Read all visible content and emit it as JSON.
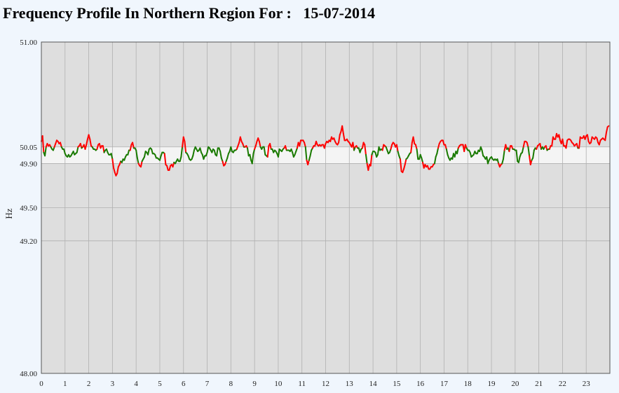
{
  "title": "Frequency Profile In Northern Region For :   15-07-2014",
  "colors": {
    "page_background": "#f0f6fd",
    "plot_background": "#dedede",
    "band_fill": "#f4f4f4",
    "grid": "#b0b0b0",
    "above_band": "#ff0000",
    "within_band": "#1a7a00"
  },
  "chart_data": {
    "type": "line",
    "title": "Frequency Profile In Northern Region For :   15-07-2014",
    "xlabel": "",
    "ylabel": "Hz",
    "xlim": [
      0,
      24
    ],
    "ylim": [
      48.0,
      51.0
    ],
    "x_ticks": [
      0,
      1,
      2,
      3,
      4,
      5,
      6,
      7,
      8,
      9,
      10,
      11,
      12,
      13,
      14,
      15,
      16,
      17,
      18,
      19,
      20,
      21,
      22,
      23
    ],
    "y_ticks": [
      {
        "value": 51.0,
        "label": "51.00"
      },
      {
        "value": 50.05,
        "label": "50.05"
      },
      {
        "value": 49.9,
        "label": "49.90"
      },
      {
        "value": 49.5,
        "label": "49.50"
      },
      {
        "value": 49.2,
        "label": "49.20"
      },
      {
        "value": 48.0,
        "label": "48.00"
      }
    ],
    "band": {
      "low": 49.9,
      "high": 50.05
    },
    "grid": true,
    "legend": "none",
    "series": [
      {
        "color_rule": "red outside 49.90-50.05 band, green inside band",
        "x": [
          0,
          0.05,
          0.1,
          0.15,
          0.2,
          0.25,
          0.3,
          0.35,
          0.4,
          0.45,
          0.5,
          0.55,
          0.6,
          0.65,
          0.7,
          0.75,
          0.8,
          0.85,
          0.9,
          0.95,
          1,
          1.05,
          1.1,
          1.15,
          1.2,
          1.25,
          1.3,
          1.35,
          1.4,
          1.45,
          1.5,
          1.55,
          1.6,
          1.65,
          1.7,
          1.75,
          1.8,
          1.85,
          1.9,
          1.95,
          2,
          2.05,
          2.1,
          2.15,
          2.2,
          2.25,
          2.3,
          2.35,
          2.4,
          2.45,
          2.5,
          2.55,
          2.6,
          2.65,
          2.7,
          2.75,
          2.8,
          2.85,
          2.9,
          2.95,
          3,
          3.05,
          3.1,
          3.15,
          3.2,
          3.25,
          3.3,
          3.35,
          3.4,
          3.45,
          3.5,
          3.55,
          3.6,
          3.65,
          3.7,
          3.75,
          3.8,
          3.85,
          3.9,
          3.95,
          4,
          4.05,
          4.1,
          4.15,
          4.2,
          4.25,
          4.3,
          4.35,
          4.4,
          4.45,
          4.5,
          4.55,
          4.6,
          4.65,
          4.7,
          4.75,
          4.8,
          4.85,
          4.9,
          4.95,
          5,
          5.05,
          5.1,
          5.15,
          5.2,
          5.25,
          5.3,
          5.35,
          5.4,
          5.45,
          5.5,
          5.55,
          5.6,
          5.65,
          5.7,
          5.75,
          5.8,
          5.85,
          5.9,
          5.95,
          6,
          6.05,
          6.1,
          6.15,
          6.2,
          6.25,
          6.3,
          6.35,
          6.4,
          6.45,
          6.5,
          6.55,
          6.6,
          6.65,
          6.7,
          6.75,
          6.8,
          6.85,
          6.9,
          6.95,
          7,
          7.05,
          7.1,
          7.15,
          7.2,
          7.25,
          7.3,
          7.35,
          7.4,
          7.45,
          7.5,
          7.55,
          7.6,
          7.65,
          7.7,
          7.75,
          7.8,
          7.85,
          7.9,
          7.95,
          8,
          8.05,
          8.1,
          8.15,
          8.2,
          8.25,
          8.3,
          8.35,
          8.4,
          8.45,
          8.5,
          8.55,
          8.6,
          8.65,
          8.7,
          8.75,
          8.8,
          8.85,
          8.9,
          8.95,
          9,
          9.05,
          9.1,
          9.15,
          9.2,
          9.25,
          9.3,
          9.35,
          9.4,
          9.45,
          9.5,
          9.55,
          9.6,
          9.65,
          9.7,
          9.75,
          9.8,
          9.85,
          9.9,
          9.95,
          10,
          10.05,
          10.1,
          10.15,
          10.2,
          10.25,
          10.3,
          10.35,
          10.4,
          10.45,
          10.5,
          10.55,
          10.6,
          10.65,
          10.7,
          10.75,
          10.8,
          10.85,
          10.9,
          10.95,
          11,
          11.05,
          11.1,
          11.15,
          11.2,
          11.25,
          11.3,
          11.35,
          11.4,
          11.45,
          11.5,
          11.55,
          11.6,
          11.65,
          11.7,
          11.75,
          11.8,
          11.85,
          11.9,
          11.95,
          12,
          12.05,
          12.1,
          12.15,
          12.2,
          12.25,
          12.3,
          12.35,
          12.4,
          12.45,
          12.5,
          12.55,
          12.6,
          12.65,
          12.7,
          12.75,
          12.8,
          12.85,
          12.9,
          12.95,
          13,
          13.05,
          13.1,
          13.15,
          13.2,
          13.25,
          13.3,
          13.35,
          13.4,
          13.45,
          13.5,
          13.55,
          13.6,
          13.65,
          13.7,
          13.75,
          13.8,
          13.85,
          13.9,
          13.95,
          14,
          14.05,
          14.1,
          14.15,
          14.2,
          14.25,
          14.3,
          14.35,
          14.4,
          14.45,
          14.5,
          14.55,
          14.6,
          14.65,
          14.7,
          14.75,
          14.8,
          14.85,
          14.9,
          14.95,
          15,
          15.05,
          15.1,
          15.15,
          15.2,
          15.25,
          15.3,
          15.35,
          15.4,
          15.45,
          15.5,
          15.55,
          15.6,
          15.65,
          15.7,
          15.75,
          15.8,
          15.85,
          15.9,
          15.95,
          16,
          16.05,
          16.1,
          16.15,
          16.2,
          16.25,
          16.3,
          16.35,
          16.4,
          16.45,
          16.5,
          16.55,
          16.6,
          16.65,
          16.7,
          16.75,
          16.8,
          16.85,
          16.9,
          16.95,
          17,
          17.05,
          17.1,
          17.15,
          17.2,
          17.25,
          17.3,
          17.35,
          17.4,
          17.45,
          17.5,
          17.55,
          17.6,
          17.65,
          17.7,
          17.75,
          17.8,
          17.85,
          17.9,
          17.95,
          18,
          18.05,
          18.1,
          18.15,
          18.2,
          18.25,
          18.3,
          18.35,
          18.4,
          18.45,
          18.5,
          18.55,
          18.6,
          18.65,
          18.7,
          18.75,
          18.8,
          18.85,
          18.9,
          18.95,
          19,
          19.05,
          19.1,
          19.15,
          19.2,
          19.25,
          19.3,
          19.35,
          19.4,
          19.45,
          19.5,
          19.55,
          19.6,
          19.65,
          19.7,
          19.75,
          19.8,
          19.85,
          19.9,
          19.95,
          20,
          20.05,
          20.1,
          20.15,
          20.2,
          20.25,
          20.3,
          20.35,
          20.4,
          20.45,
          20.5,
          20.55,
          20.6,
          20.65,
          20.7,
          20.75,
          20.8,
          20.85,
          20.9,
          20.95,
          21,
          21.05,
          21.1,
          21.15,
          21.2,
          21.25,
          21.3,
          21.35,
          21.4,
          21.45,
          21.5,
          21.55,
          21.6,
          21.65,
          21.7,
          21.75,
          21.8,
          21.85,
          21.9,
          21.95,
          22,
          22.05,
          22.1,
          22.15,
          22.2,
          22.25,
          22.3,
          22.35,
          22.4,
          22.45,
          22.5,
          22.55,
          22.6,
          22.65,
          22.7,
          22.75,
          22.8,
          22.85,
          22.9,
          22.95,
          23,
          23.05,
          23.1,
          23.15,
          23.2,
          23.25,
          23.3,
          23.35,
          23.4,
          23.45,
          23.5,
          23.55,
          23.6,
          23.65,
          23.7,
          23.75,
          23.8,
          23.85,
          23.9,
          23.95
        ],
        "y": [
          50.1,
          50.15,
          50.0,
          49.97,
          50.05,
          50.08,
          50.06,
          50.07,
          50.05,
          50.03,
          50.02,
          50.05,
          50.08,
          50.11,
          50.1,
          50.08,
          50.09,
          50.05,
          50.03,
          50.03,
          49.99,
          49.97,
          49.96,
          49.98,
          49.96,
          49.97,
          49.99,
          50.01,
          49.98,
          49.99,
          50.0,
          50.05,
          50.06,
          50.08,
          50.04,
          50.05,
          50.07,
          50.03,
          50.07,
          50.12,
          50.16,
          50.12,
          50.06,
          50.05,
          50.03,
          50.03,
          50.02,
          50.03,
          50.07,
          50.08,
          50.04,
          50.06,
          50.06,
          50.0,
          50.02,
          50.03,
          50.0,
          49.98,
          49.98,
          49.99,
          49.94,
          49.86,
          49.82,
          49.79,
          49.81,
          49.87,
          49.89,
          49.92,
          49.91,
          49.94,
          49.93,
          49.96,
          49.98,
          49.98,
          50.02,
          50.02,
          50.07,
          50.09,
          50.04,
          50.04,
          50.02,
          49.95,
          49.9,
          49.88,
          49.87,
          49.92,
          49.94,
          49.96,
          50.01,
          50.0,
          49.98,
          50.03,
          50.04,
          50.03,
          49.99,
          49.99,
          49.98,
          49.95,
          49.95,
          49.94,
          49.93,
          49.97,
          50.0,
          50.0,
          49.99,
          49.89,
          49.88,
          49.84,
          49.84,
          49.88,
          49.89,
          49.87,
          49.91,
          49.9,
          49.92,
          49.94,
          49.92,
          49.92,
          49.96,
          50.05,
          50.14,
          50.1,
          50.0,
          49.99,
          49.97,
          49.94,
          49.93,
          49.94,
          49.97,
          50.02,
          50.05,
          50.03,
          50.01,
          50.02,
          50.04,
          50.0,
          49.98,
          49.94,
          49.97,
          49.97,
          50.0,
          50.05,
          50.04,
          50.02,
          50.0,
          50.03,
          50.02,
          49.98,
          49.97,
          50.04,
          50.04,
          50.01,
          49.95,
          49.92,
          49.88,
          49.89,
          49.92,
          49.95,
          49.99,
          50.01,
          50.05,
          50.01,
          50.0,
          50.02,
          50.02,
          50.03,
          50.06,
          50.09,
          50.14,
          50.1,
          50.08,
          50.05,
          50.05,
          50.06,
          50.04,
          49.97,
          49.98,
          49.93,
          49.9,
          49.99,
          50.03,
          50.06,
          50.1,
          50.13,
          50.1,
          50.05,
          50.03,
          50.05,
          50.05,
          49.98,
          49.97,
          49.96,
          50.06,
          50.08,
          50.03,
          50.03,
          50.0,
          50.02,
          50.01,
          49.99,
          49.96,
          50.03,
          50.02,
          50.01,
          50.03,
          50.04,
          50.06,
          50.02,
          50.02,
          50.02,
          50.01,
          50.03,
          50.0,
          49.96,
          49.98,
          50.01,
          50.04,
          50.09,
          50.06,
          50.11,
          50.11,
          50.11,
          50.09,
          50.05,
          49.93,
          49.89,
          49.93,
          49.97,
          50.02,
          50.04,
          50.06,
          50.06,
          50.1,
          50.07,
          50.06,
          50.07,
          50.06,
          50.07,
          50.07,
          50.04,
          50.08,
          50.1,
          50.09,
          50.11,
          50.1,
          50.14,
          50.12,
          50.13,
          50.1,
          50.08,
          50.07,
          50.09,
          50.16,
          50.19,
          50.24,
          50.17,
          50.11,
          50.11,
          50.12,
          50.1,
          50.09,
          50.07,
          50.05,
          50.09,
          50.02,
          50.05,
          50.06,
          50.04,
          50.04,
          50.0,
          50.03,
          50.04,
          50.09,
          50.07,
          49.98,
          49.9,
          49.84,
          49.89,
          49.88,
          49.98,
          50.01,
          50.01,
          50.0,
          49.96,
          49.98,
          50.05,
          50.02,
          50.03,
          50.02,
          50.07,
          50.06,
          50.05,
          50.02,
          49.99,
          50.0,
          50.03,
          50.07,
          50.09,
          50.08,
          50.05,
          50.07,
          50.01,
          49.97,
          49.94,
          49.83,
          49.82,
          49.85,
          49.89,
          49.94,
          49.95,
          49.97,
          49.99,
          50.0,
          50.09,
          50.14,
          50.08,
          50.07,
          50.03,
          49.94,
          49.94,
          49.98,
          49.95,
          49.91,
          49.86,
          49.89,
          49.87,
          49.88,
          49.85,
          49.85,
          49.87,
          49.87,
          49.89,
          49.9,
          49.96,
          49.99,
          50.04,
          50.08,
          50.1,
          50.11,
          50.11,
          50.07,
          50.07,
          50.03,
          49.98,
          49.95,
          49.93,
          49.95,
          49.94,
          49.99,
          49.96,
          50.01,
          49.99,
          50.04,
          50.06,
          50.07,
          50.07,
          50.07,
          50.01,
          50.07,
          50.04,
          50.02,
          50.02,
          50.0,
          49.96,
          49.97,
          49.98,
          50.01,
          49.99,
          49.99,
          50.02,
          50.01,
          50.05,
          50.02,
          49.97,
          49.96,
          49.94,
          49.96,
          49.9,
          49.93,
          49.95,
          49.96,
          49.94,
          49.93,
          49.94,
          49.93,
          49.94,
          49.9,
          49.87,
          49.89,
          49.9,
          49.94,
          50.02,
          50.07,
          50.03,
          50.04,
          50.01,
          50.06,
          50.06,
          50.03,
          50.03,
          50.02,
          50.02,
          49.92,
          49.91,
          49.96,
          49.99,
          50.0,
          50.05,
          50.1,
          50.1,
          50.09,
          50.05,
          49.97,
          49.89,
          49.93,
          49.95,
          50.02,
          50.04,
          50.03,
          50.06,
          50.07,
          50.08,
          50.03,
          50.05,
          50.03,
          50.05,
          50.06,
          50.02,
          50.03,
          50.03,
          50.06,
          50.06,
          50.14,
          50.12,
          50.12,
          50.17,
          50.14,
          50.16,
          50.11,
          50.08,
          50.12,
          50.06,
          50.06,
          50.04,
          50.11,
          50.12,
          50.12,
          50.11,
          50.09,
          50.08,
          50.06,
          50.07,
          50.08,
          50.04,
          50.04,
          50.14,
          50.13,
          50.13,
          50.15,
          50.12,
          50.15,
          50.16,
          50.1,
          50.08,
          50.09,
          50.14,
          50.13,
          50.12,
          50.14,
          50.13,
          50.09,
          50.07,
          50.11,
          50.12,
          50.13,
          50.12,
          50.11,
          50.18,
          50.23,
          50.24
        ]
      }
    ]
  }
}
